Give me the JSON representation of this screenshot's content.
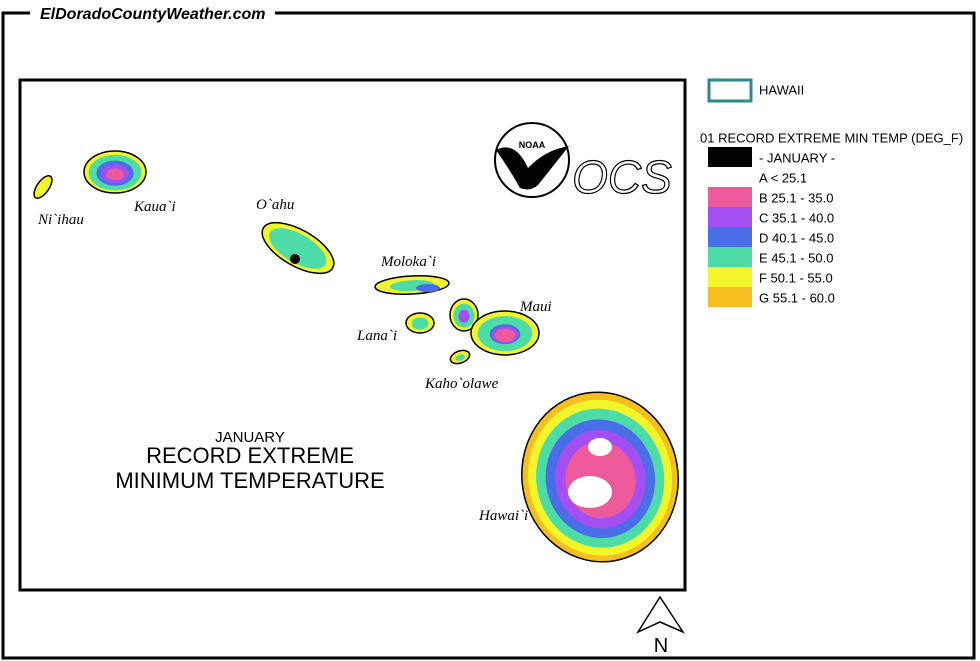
{
  "header": {
    "site": "ElDoradoCountyWeather.com"
  },
  "map": {
    "islands": [
      {
        "label": "Ni`ihau"
      },
      {
        "label": "Kaua`i"
      },
      {
        "label": "O`ahu"
      },
      {
        "label": "Moloka`i"
      },
      {
        "label": "Lana`i"
      },
      {
        "label": "Maui"
      },
      {
        "label": "Kaho`olawe"
      },
      {
        "label": "Hawai`i"
      }
    ],
    "title": {
      "month": "JANUARY",
      "line1": "RECORD EXTREME",
      "line2": "MINIMUM TEMPERATURE"
    },
    "logos": {
      "noaa": "NOAA",
      "ocs": "OCS"
    },
    "north": "N"
  },
  "legend": {
    "region": "HAWAII",
    "title": "01 RECORD EXTREME MIN TEMP (DEG_F)",
    "items": [
      {
        "label": "- JANUARY -",
        "color": "#000000"
      },
      {
        "label": "A < 25.1",
        "color": "#ffffff"
      },
      {
        "label": "B 25.1 - 35.0",
        "color": "#ec5a9c"
      },
      {
        "label": "C 35.1 - 40.0",
        "color": "#a44ff2"
      },
      {
        "label": "D 40.1 - 45.0",
        "color": "#4a6ee8"
      },
      {
        "label": "E 45.1 - 50.0",
        "color": "#4ddba8"
      },
      {
        "label": "F 50.1 - 55.0",
        "color": "#f2f52a"
      },
      {
        "label": "G 55.1 - 60.0",
        "color": "#f6be1f"
      }
    ]
  }
}
